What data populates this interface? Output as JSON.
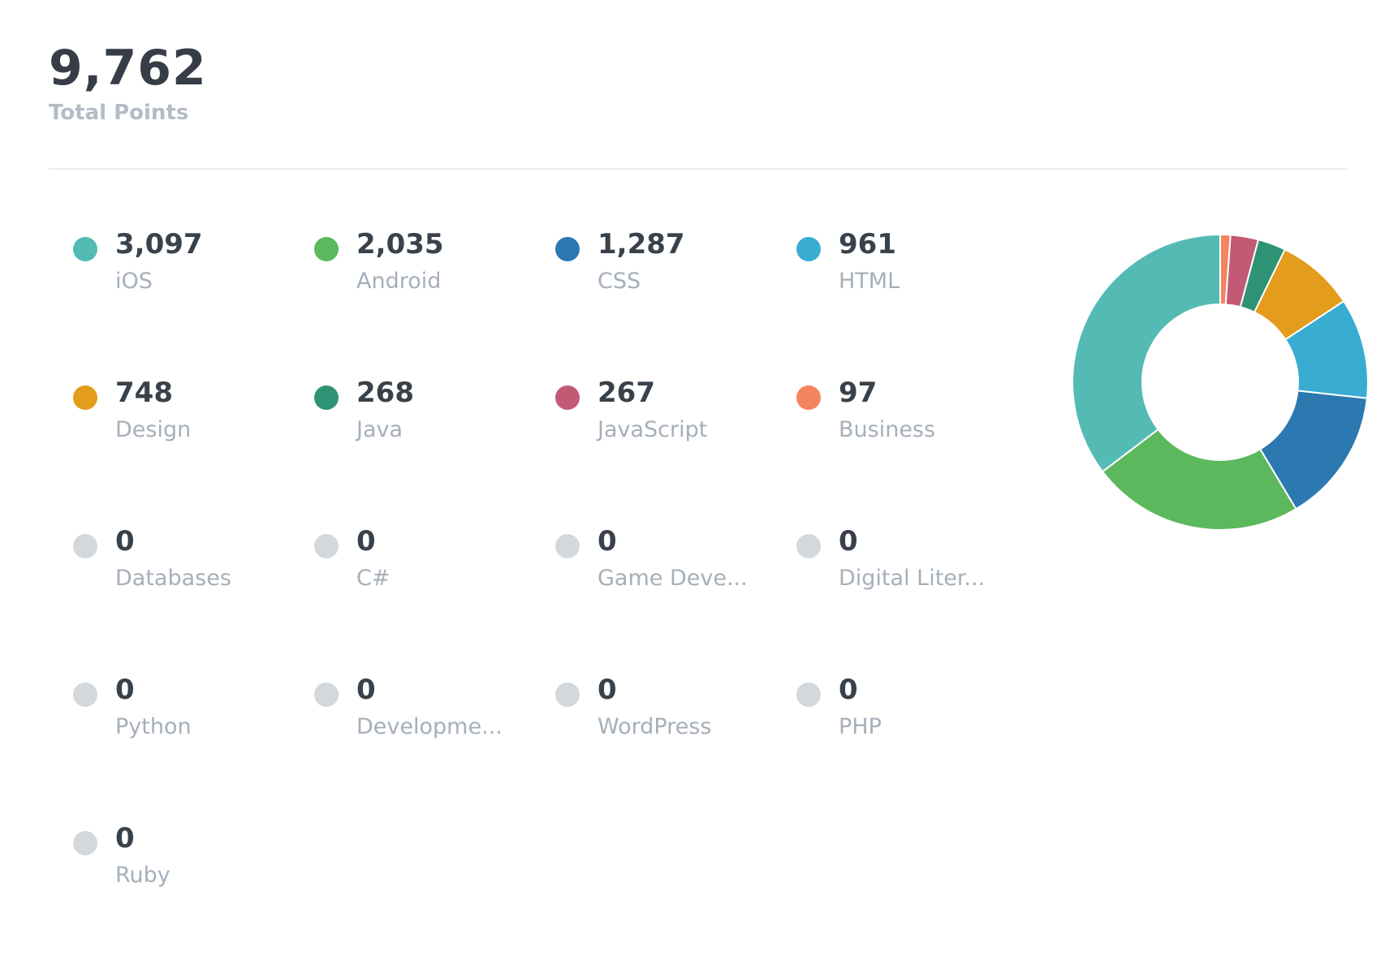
{
  "summary": {
    "total_value": "9,762",
    "total_label": "Total Points"
  },
  "chart_data": {
    "type": "pie",
    "variant": "donut",
    "categories": [
      "iOS",
      "Android",
      "CSS",
      "HTML",
      "Design",
      "Java",
      "JavaScript",
      "Business",
      "Databases",
      "C#",
      "Game Deve...",
      "Digital Liter...",
      "Python",
      "Developme...",
      "WordPress",
      "PHP",
      "Ruby"
    ],
    "values": [
      3097,
      2035,
      1287,
      961,
      748,
      268,
      267,
      97,
      0,
      0,
      0,
      0,
      0,
      0,
      0,
      0,
      0
    ],
    "value_labels": [
      "3,097",
      "2,035",
      "1,287",
      "961",
      "748",
      "268",
      "267",
      "97",
      "0",
      "0",
      "0",
      "0",
      "0",
      "0",
      "0",
      "0",
      "0"
    ],
    "colors": [
      "#53bbb4",
      "#5cb85c",
      "#2c78b0",
      "#39add1",
      "#e39c1c",
      "#2e9374",
      "#c25975",
      "#f4845f",
      "#d3d8dd",
      "#d3d8dd",
      "#d3d8dd",
      "#d3d8dd",
      "#d3d8dd",
      "#d3d8dd",
      "#d3d8dd",
      "#d3d8dd",
      "#d3d8dd"
    ],
    "legend_placement": "left",
    "start_angle_deg": 0,
    "direction": "counterclockwise"
  }
}
